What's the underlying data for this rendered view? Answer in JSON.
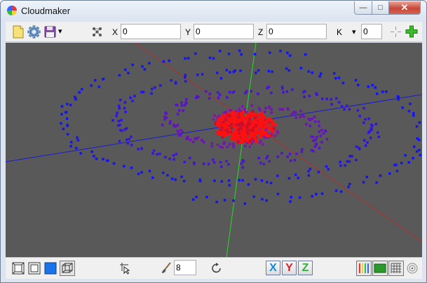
{
  "window": {
    "title": "Cloudmaker",
    "minimize_glyph": "—",
    "maximize_glyph": "□",
    "close_glyph": "✕"
  },
  "toolbar": {
    "x_label": "X",
    "x_value": "0",
    "y_label": "Y",
    "y_value": "0",
    "z_label": "Z",
    "z_value": "0",
    "k_label": "K",
    "k_value": "0",
    "dropdown_glyph": "▾"
  },
  "statusbar": {
    "brush_size": "8",
    "axis_x": "X",
    "axis_y": "Y",
    "axis_z": "Z"
  },
  "colors": {
    "viewport_bg": "#595959",
    "axis_red": "#b03030",
    "axis_green": "#22dd22",
    "axis_blue": "#1a1ad8",
    "core": "#ff1010",
    "arm_inner": "#8a1aa8",
    "arm_outer": "#1a1aee"
  }
}
